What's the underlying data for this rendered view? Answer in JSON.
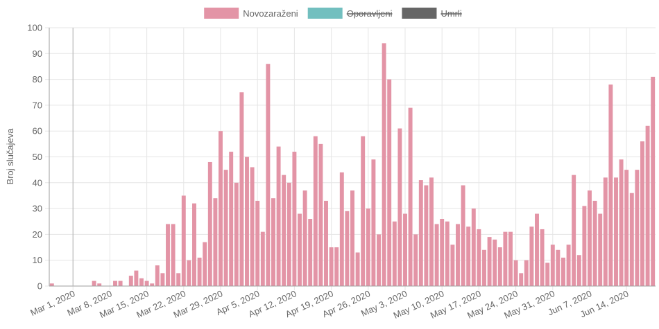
{
  "chart_data": {
    "type": "bar",
    "ylabel": "Broj slučajeva",
    "xlabel": "",
    "ylim": [
      0,
      100
    ],
    "y_ticks": [
      0,
      10,
      20,
      30,
      40,
      50,
      60,
      70,
      80,
      90,
      100
    ],
    "grid": true,
    "legend_position": "top-center",
    "legend": [
      {
        "label": "Novozaraženi",
        "color": "#e394a6",
        "hidden": false
      },
      {
        "label": "Oporavljeni",
        "color": "#72bfbf",
        "hidden": true
      },
      {
        "label": "Umrli",
        "color": "#666666",
        "hidden": true
      }
    ],
    "x_start_date": "2020-02-26",
    "x_tick_labels": [
      {
        "label": "Mar 1, 2020",
        "date": "2020-03-01"
      },
      {
        "label": "Mar 8, 2020",
        "date": "2020-03-08"
      },
      {
        "label": "Mar 15, 2020",
        "date": "2020-03-15"
      },
      {
        "label": "Mar 22, 2020",
        "date": "2020-03-22"
      },
      {
        "label": "Mar 29, 2020",
        "date": "2020-03-29"
      },
      {
        "label": "Apr 5, 2020",
        "date": "2020-04-05"
      },
      {
        "label": "Apr 12, 2020",
        "date": "2020-04-12"
      },
      {
        "label": "Apr 19, 2020",
        "date": "2020-04-19"
      },
      {
        "label": "Apr 26, 2020",
        "date": "2020-04-26"
      },
      {
        "label": "May 3, 2020",
        "date": "2020-05-03"
      },
      {
        "label": "May 10, 2020",
        "date": "2020-05-10"
      },
      {
        "label": "May 17, 2020",
        "date": "2020-05-17"
      },
      {
        "label": "May 24, 2020",
        "date": "2020-05-24"
      },
      {
        "label": "May 31, 2020",
        "date": "2020-05-31"
      },
      {
        "label": "Jun 7, 2020",
        "date": "2020-06-07"
      },
      {
        "label": "Jun 14, 2020",
        "date": "2020-06-14"
      }
    ],
    "series": [
      {
        "name": "Novozaraženi",
        "color": "#e394a6",
        "values": [
          1,
          0,
          0,
          0,
          0,
          0,
          0,
          0,
          2,
          1,
          0,
          0,
          2,
          2,
          0,
          4,
          6,
          3,
          2,
          1,
          8,
          5,
          24,
          24,
          5,
          35,
          10,
          32,
          11,
          17,
          48,
          34,
          60,
          45,
          52,
          40,
          75,
          50,
          46,
          33,
          21,
          86,
          34,
          54,
          43,
          40,
          52,
          28,
          37,
          26,
          58,
          55,
          33,
          15,
          15,
          44,
          29,
          37,
          13,
          58,
          30,
          49,
          20,
          94,
          80,
          25,
          61,
          28,
          69,
          20,
          41,
          39,
          42,
          24,
          26,
          25,
          16,
          24,
          39,
          23,
          30,
          22,
          14,
          19,
          18,
          15,
          21,
          21,
          10,
          5,
          10,
          23,
          28,
          22,
          9,
          16,
          14,
          11,
          16,
          43,
          12,
          31,
          37,
          33,
          28,
          42,
          78,
          42,
          49,
          45,
          36,
          45,
          56,
          62,
          81
        ]
      }
    ]
  }
}
